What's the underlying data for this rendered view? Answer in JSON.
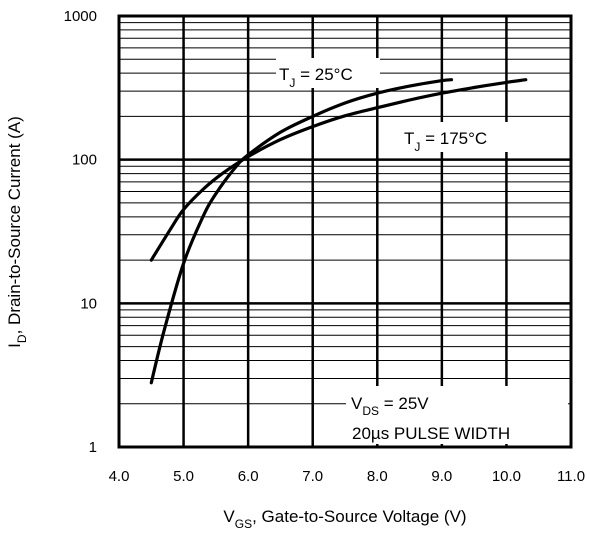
{
  "chart_data": {
    "type": "line",
    "xlabel": {
      "prefix": "V",
      "sub": "GS",
      "rest": ", Gate-to-Source Voltage (V)"
    },
    "ylabel": {
      "prefix": "I",
      "sub": "D",
      "rest": ", Drain-to-Source Current   (A)"
    },
    "x_ticks": [
      "4.0",
      "5.0",
      "6.0",
      "7.0",
      "8.0",
      "9.0",
      "10.0",
      "11.0"
    ],
    "y_ticks": [
      "1",
      "10",
      "100",
      "1000"
    ],
    "xlim": [
      4.0,
      11.0
    ],
    "ylim": [
      1,
      1000
    ],
    "y_scale": "log",
    "grid": true,
    "series": [
      {
        "name_parts": {
          "prefix": "T",
          "sub": "J",
          "rest": " = 25°C"
        },
        "x": [
          4.5,
          4.7,
          5.0,
          5.3,
          5.5,
          5.8,
          6.0,
          6.5,
          7.0,
          7.5,
          8.0,
          8.5,
          9.0,
          9.15
        ],
        "y": [
          2.8,
          6.5,
          19,
          40,
          58,
          88,
          108,
          155,
          200,
          248,
          290,
          325,
          355,
          360
        ]
      },
      {
        "name_parts": {
          "prefix": "T",
          "sub": "J",
          "rest": " = 175°C"
        },
        "x": [
          4.5,
          4.8,
          5.0,
          5.3,
          5.6,
          6.0,
          6.5,
          7.0,
          7.5,
          8.0,
          8.5,
          9.0,
          9.5,
          10.0,
          10.3
        ],
        "y": [
          20,
          33,
          45,
          62,
          80,
          105,
          138,
          170,
          202,
          230,
          260,
          290,
          318,
          345,
          360
        ]
      }
    ],
    "annotations": [
      {
        "prefix": "V",
        "sub": "DS",
        "rest": " = 25V"
      },
      {
        "text": "20µs PULSE WIDTH"
      }
    ]
  }
}
